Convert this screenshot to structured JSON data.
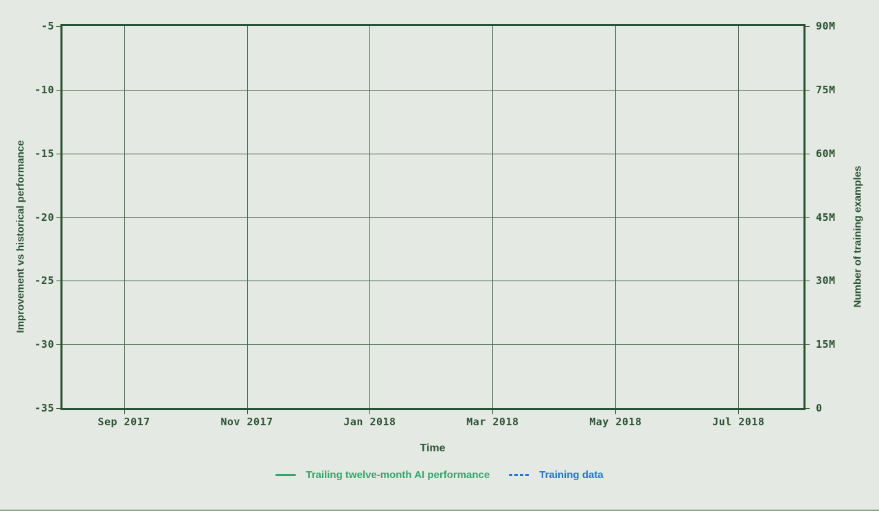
{
  "chart_data": {
    "type": "line",
    "title": "",
    "xlabel": "Time",
    "ylabel_left": "Improvement vs historical performance",
    "ylabel_right": "Number of training examples",
    "x_ticks": [
      "Sep 2017",
      "Nov 2017",
      "Jan 2018",
      "Mar 2018",
      "May 2018",
      "Jul 2018"
    ],
    "y_ticks_left": [
      "-5",
      "-10",
      "-15",
      "-20",
      "-25",
      "-30",
      "-35"
    ],
    "y_ticks_right": [
      "90M",
      "75M",
      "60M",
      "45M",
      "30M",
      "15M",
      "0"
    ],
    "ylim_left": [
      -35,
      -5
    ],
    "ylim_right": [
      0,
      90000000
    ],
    "grid": true,
    "legend_position": "bottom",
    "series": [
      {
        "name": "Trailing twelve-month AI performance",
        "color": "#34a56b",
        "line_style": "solid",
        "axis": "left",
        "points": []
      },
      {
        "name": "Training data",
        "color": "#1a73e8",
        "line_style": "dashed",
        "axis": "right",
        "points": []
      }
    ],
    "colors": {
      "axis": "#2b5233",
      "grid": "#44664b",
      "background": "#e4e9e3",
      "text": "#2b5233"
    }
  }
}
